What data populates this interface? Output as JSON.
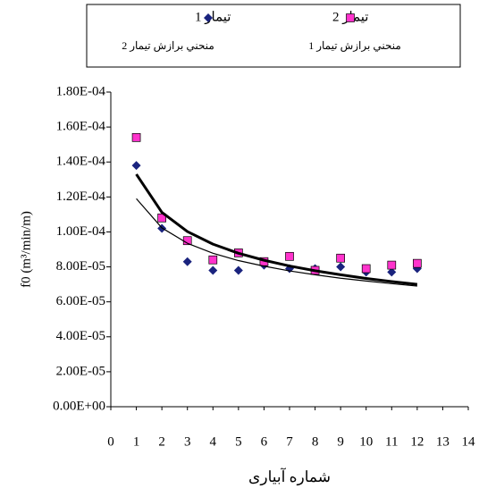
{
  "chart_data": {
    "type": "scatter",
    "y_label": "f0 (m³/min/m)",
    "x_label": "شماره آبیاری",
    "xlim": [
      0,
      14
    ],
    "xticks": [
      0,
      1,
      2,
      3,
      4,
      5,
      6,
      7,
      8,
      9,
      10,
      11,
      12,
      13,
      14
    ],
    "ylim": [
      0,
      0.00018
    ],
    "yticks": [
      {
        "value": 0,
        "label": "0.00E+00"
      },
      {
        "value": 2e-05,
        "label": "2.00E-05"
      },
      {
        "value": 4e-05,
        "label": "4.00E-05"
      },
      {
        "value": 6e-05,
        "label": "6.00E-05"
      },
      {
        "value": 8e-05,
        "label": "8.00E-05"
      },
      {
        "value": 0.0001,
        "label": "1.00E-04"
      },
      {
        "value": 0.00012,
        "label": "1.20E-04"
      },
      {
        "value": 0.00014,
        "label": "1.40E-04"
      },
      {
        "value": 0.00016,
        "label": "1.60E-04"
      },
      {
        "value": 0.00018,
        "label": "1.80E-04"
      }
    ],
    "x": [
      1,
      2,
      3,
      4,
      5,
      6,
      7,
      8,
      9,
      10,
      11,
      12
    ],
    "series": [
      {
        "name": "تيمار 1",
        "kind": "scatter",
        "marker": "diamond",
        "color": "#1a237e",
        "values": [
          0.000138,
          0.000102,
          8.3e-05,
          7.8e-05,
          7.8e-05,
          8.1e-05,
          7.9e-05,
          7.9e-05,
          8e-05,
          7.7e-05,
          7.7e-05,
          7.9e-05
        ]
      },
      {
        "name": "تيمار 2",
        "kind": "scatter",
        "marker": "square",
        "color": "#ff33cc",
        "values": [
          0.000154,
          0.000108,
          9.5e-05,
          8.4e-05,
          8.8e-05,
          8.3e-05,
          8.6e-05,
          7.8e-05,
          8.5e-05,
          7.9e-05,
          8.1e-05,
          8.2e-05
        ]
      },
      {
        "name": "منحني برازش تيمار 2",
        "kind": "line",
        "width": 3,
        "color": "#000000",
        "values": [
          0.000133,
          0.0001112,
          0.0001002,
          9.3e-05,
          8.78e-05,
          8.38e-05,
          8.05e-05,
          7.78e-05,
          7.55e-05,
          7.34e-05,
          7.16e-05,
          7e-05
        ]
      },
      {
        "name": "منحني برازش تيمار 1",
        "kind": "line",
        "width": 1.2,
        "color": "#000000",
        "values": [
          0.000119,
          0.0001023,
          9.35e-05,
          8.78e-05,
          8.36e-05,
          8.04e-05,
          7.77e-05,
          7.55e-05,
          7.35e-05,
          7.19e-05,
          7.04e-05,
          6.9e-05
        ]
      }
    ]
  }
}
